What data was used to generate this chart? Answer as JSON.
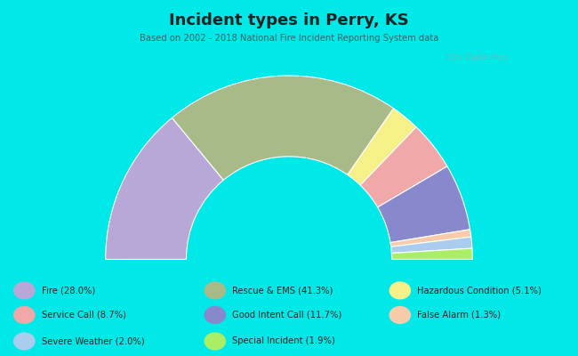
{
  "title": "Incident types in Perry, KS",
  "subtitle": "Based on 2002 - 2018 National Fire Incident Reporting System data",
  "background_color": "#00e8e8",
  "chart_bg_color": "#e0ede0",
  "watermark": "City-Data.com",
  "title_color": "#222222",
  "subtitle_color": "#336666",
  "segments": [
    {
      "label": "Fire (28.0%)",
      "value": 28.0,
      "color": "#b8a8d8"
    },
    {
      "label": "Rescue & EMS (41.3%)",
      "value": 41.3,
      "color": "#a8ba88"
    },
    {
      "label": "Hazardous Condition (5.1%)",
      "value": 5.1,
      "color": "#f5f088"
    },
    {
      "label": "Service Call (8.7%)",
      "value": 8.7,
      "color": "#f0a8a8"
    },
    {
      "label": "Good Intent Call (11.7%)",
      "value": 11.7,
      "color": "#8888cc"
    },
    {
      "label": "False Alarm (1.3%)",
      "value": 1.3,
      "color": "#f8ccaa"
    },
    {
      "label": "Severe Weather (2.0%)",
      "value": 2.0,
      "color": "#aaccee"
    },
    {
      "label": "Special Incident (1.9%)",
      "value": 1.9,
      "color": "#aaee66"
    }
  ],
  "draw_order": [
    "Fire (28.0%)",
    "Rescue & EMS (41.3%)",
    "Hazardous Condition (5.1%)",
    "Service Call (8.7%)",
    "Good Intent Call (11.7%)",
    "False Alarm (1.3%)",
    "Severe Weather (2.0%)",
    "Special Incident (1.9%)"
  ],
  "legend_items": [
    [
      "Fire (28.0%)",
      "#b8a8d8"
    ],
    [
      "Service Call (8.7%)",
      "#f0a8a8"
    ],
    [
      "Severe Weather (2.0%)",
      "#aaccee"
    ],
    [
      "Rescue & EMS (41.3%)",
      "#a8ba88"
    ],
    [
      "Good Intent Call (11.7%)",
      "#8888cc"
    ],
    [
      "Special Incident (1.9%)",
      "#aaee66"
    ],
    [
      "Hazardous Condition (5.1%)",
      "#f5f088"
    ],
    [
      "False Alarm (1.3%)",
      "#f8ccaa"
    ]
  ]
}
